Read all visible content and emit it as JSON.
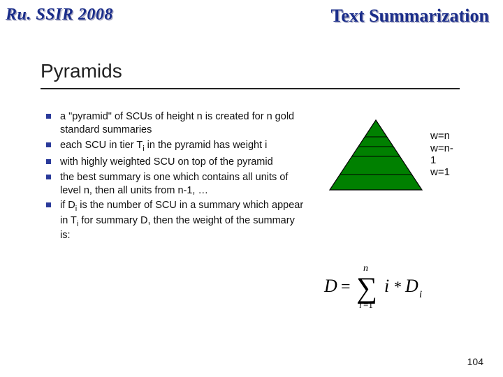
{
  "header": {
    "left": "Ru. SSIR 2008",
    "right": "Text Summarization"
  },
  "title": "Pyramids",
  "bullets": [
    {
      "html": "a \"pyramid\" of SCUs of height n is created for n gold standard summaries"
    },
    {
      "html": "each SCU in tier T<sub>i</sub> in the pyramid has weight i"
    },
    {
      "html": "with highly weighted SCU on top of the pyramid"
    },
    {
      "html": "the best summary is one which contains all units of level n, then all units from n-1, …"
    },
    {
      "html": "if D<sub>i</sub> is the number of SCU in a summary which appear in T<sub>i</sub> for summary D, then the weight of the summary is:"
    }
  ],
  "pyramid": {
    "fill": "#008000",
    "stroke": "#000000",
    "labels": {
      "top": "w=n",
      "second": "w=n-1",
      "bottom": "w=1"
    }
  },
  "formula": {
    "text": "D = \\sum_{i=1}^{n} i * D_i",
    "color": "#000000"
  },
  "page_number": "104",
  "colors": {
    "header_text": "#1a2d8a",
    "header_shadow": "#a8a8c0",
    "bullet_marker": "#2a3a9a",
    "underline": "#222222",
    "background": "#ffffff"
  },
  "fonts": {
    "header_left": "Comic Sans MS",
    "header_right": "Times New Roman",
    "body": "Verdana",
    "title_size_pt": 28,
    "body_size_pt": 14.5,
    "label_size_pt": 15
  }
}
